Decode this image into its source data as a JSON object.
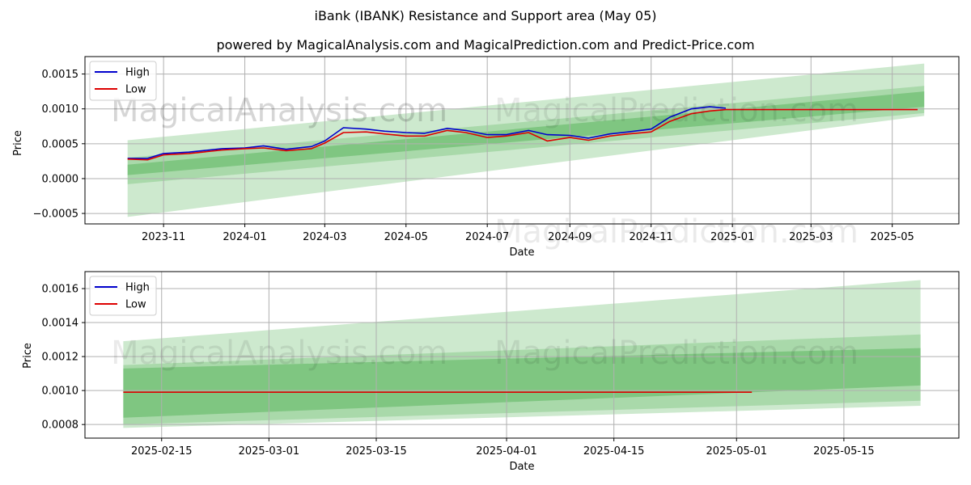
{
  "title": "iBank (IBANK) Resistance and Support area (May 05)",
  "subtitle": "powered by MagicalAnalysis.com and MagicalPrediction.com and Predict-Price.com",
  "watermarks": [
    "MagicalAnalysis.com",
    "MagicalPrediction.com"
  ],
  "colors": {
    "high": "#0000cc",
    "low": "#dd0000",
    "band": "#4caf50"
  },
  "chart_data": [
    {
      "type": "line",
      "xlabel": "Date",
      "ylabel": "Price",
      "x_ticks": [
        "2023-11",
        "2024-01",
        "2024-03",
        "2024-05",
        "2024-07",
        "2024-09",
        "2024-11",
        "2025-01",
        "2025-03",
        "2025-05"
      ],
      "y_ticks": [
        "−0.0005",
        "0.0000",
        "0.0005",
        "0.0010",
        "0.0015"
      ],
      "ylim": [
        -0.00065,
        0.00175
      ],
      "legend": {
        "position": "top-left",
        "entries": [
          "High",
          "Low"
        ]
      },
      "grid": true,
      "series": [
        {
          "name": "High",
          "x": [
            "2023-10-05",
            "2023-10-20",
            "2023-11-01",
            "2023-11-20",
            "2023-12-15",
            "2024-01-01",
            "2024-01-15",
            "2024-02-01",
            "2024-02-20",
            "2024-03-01",
            "2024-03-15",
            "2024-04-01",
            "2024-04-15",
            "2024-05-01",
            "2024-05-15",
            "2024-06-01",
            "2024-06-15",
            "2024-07-01",
            "2024-07-15",
            "2024-08-01",
            "2024-08-15",
            "2024-09-01",
            "2024-09-15",
            "2024-10-01",
            "2024-10-15",
            "2024-11-01",
            "2024-11-15",
            "2024-12-01",
            "2024-12-15",
            "2024-12-27"
          ],
          "values": [
            0.00029,
            0.00029,
            0.00036,
            0.00038,
            0.00043,
            0.00044,
            0.00047,
            0.00042,
            0.00046,
            0.00054,
            0.00073,
            0.00071,
            0.00068,
            0.00066,
            0.00065,
            0.00072,
            0.00069,
            0.00063,
            0.00063,
            0.00069,
            0.00063,
            0.00062,
            0.00058,
            0.00064,
            0.00067,
            0.00071,
            0.00088,
            0.001,
            0.00103,
            0.00101
          ]
        },
        {
          "name": "Low",
          "x": [
            "2023-10-05",
            "2023-10-20",
            "2023-11-01",
            "2023-11-20",
            "2023-12-15",
            "2024-01-01",
            "2024-01-15",
            "2024-02-01",
            "2024-02-20",
            "2024-03-01",
            "2024-03-15",
            "2024-04-01",
            "2024-04-15",
            "2024-05-01",
            "2024-05-15",
            "2024-06-01",
            "2024-06-15",
            "2024-07-01",
            "2024-07-15",
            "2024-08-01",
            "2024-08-15",
            "2024-09-01",
            "2024-09-15",
            "2024-10-01",
            "2024-10-15",
            "2024-11-01",
            "2024-11-15",
            "2024-12-01",
            "2024-12-15",
            "2024-12-27",
            "2025-05-20"
          ],
          "values": [
            0.00028,
            0.00027,
            0.00034,
            0.00036,
            0.00041,
            0.00043,
            0.00044,
            0.0004,
            0.00043,
            0.00051,
            0.00066,
            0.00067,
            0.00064,
            0.00061,
            0.00061,
            0.00069,
            0.00066,
            0.00059,
            0.00061,
            0.00066,
            0.00054,
            0.00059,
            0.00055,
            0.00061,
            0.00064,
            0.00067,
            0.00082,
            0.00093,
            0.00097,
            0.00099,
            0.00099
          ]
        }
      ],
      "bands": [
        {
          "x": [
            "2023-10-05",
            "2025-05-25"
          ],
          "upper": [
            0.00055,
            0.00165
          ],
          "lower": [
            -0.00055,
            0.0009
          ]
        },
        {
          "x": [
            "2023-10-05",
            "2025-05-25"
          ],
          "upper": [
            0.0003,
            0.00133
          ],
          "lower": [
            -8e-05,
            0.00094
          ]
        },
        {
          "x": [
            "2023-10-05",
            "2025-05-25"
          ],
          "upper": [
            0.0002,
            0.00125
          ],
          "lower": [
            5e-05,
            0.00103
          ]
        }
      ]
    },
    {
      "type": "line",
      "xlabel": "Date",
      "ylabel": "Price",
      "x_ticks": [
        "2025-02-15",
        "2025-03-01",
        "2025-03-15",
        "2025-04-01",
        "2025-04-15",
        "2025-05-01",
        "2025-05-15"
      ],
      "y_ticks": [
        "0.0008",
        "0.0010",
        "0.0012",
        "0.0014",
        "0.0016"
      ],
      "ylim": [
        0.00072,
        0.0017
      ],
      "legend": {
        "position": "top-left",
        "entries": [
          "High",
          "Low"
        ]
      },
      "grid": true,
      "series": [
        {
          "name": "Low",
          "x": [
            "2025-02-10",
            "2025-05-03"
          ],
          "values": [
            0.00099,
            0.00099
          ]
        }
      ],
      "bands": [
        {
          "x": [
            "2025-02-10",
            "2025-05-25"
          ],
          "upper": [
            0.00129,
            0.00165
          ],
          "lower": [
            0.00078,
            0.00091
          ]
        },
        {
          "x": [
            "2025-02-10",
            "2025-05-25"
          ],
          "upper": [
            0.00115,
            0.00133
          ],
          "lower": [
            0.0008,
            0.00094
          ]
        },
        {
          "x": [
            "2025-02-10",
            "2025-05-25"
          ],
          "upper": [
            0.00113,
            0.00125
          ],
          "lower": [
            0.00084,
            0.00103
          ]
        }
      ]
    }
  ]
}
